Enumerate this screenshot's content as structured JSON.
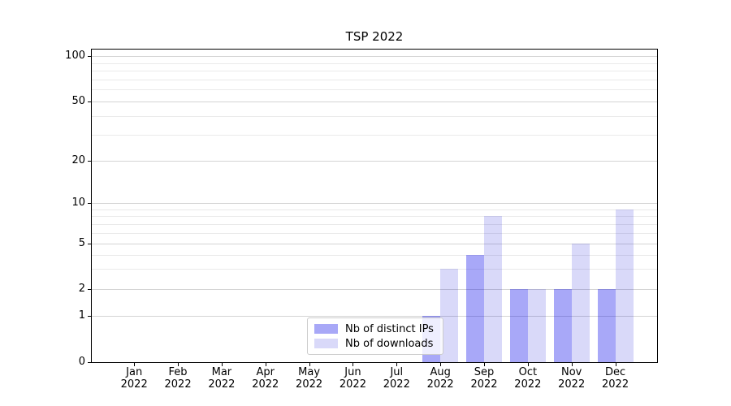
{
  "title": "TSP 2022",
  "chart_data": {
    "type": "bar",
    "title": "TSP 2022",
    "categories": [
      "Jan 2022",
      "Feb 2022",
      "Mar 2022",
      "Apr 2022",
      "May 2022",
      "Jun 2022",
      "Jul 2022",
      "Aug 2022",
      "Sep 2022",
      "Oct 2022",
      "Nov 2022",
      "Dec 2022"
    ],
    "series": [
      {
        "name": "Nb of distinct IPs",
        "color": "rgba(0,0,234,0.34)",
        "solid_color": "#a8a8f7",
        "values": [
          0,
          0,
          0,
          0,
          0,
          0,
          0,
          1,
          4,
          2,
          2,
          2
        ]
      },
      {
        "name": "Nb of downloads",
        "color": "rgba(2,2,215,0.15)",
        "solid_color": "#d9d9f9",
        "values": [
          0,
          0,
          0,
          0,
          0,
          0,
          0,
          3,
          8,
          2,
          5,
          9
        ]
      }
    ],
    "xlabel": "",
    "ylabel": "",
    "y_axis": {
      "scale": "log-like with linear zero region",
      "ticks": [
        0,
        1,
        2,
        5,
        10,
        20,
        50,
        100
      ],
      "tick_labels": [
        "0",
        "1",
        "2",
        "5",
        "10",
        "20",
        "50",
        "100"
      ],
      "minor_gridlines": [
        3,
        4,
        6,
        7,
        8,
        9,
        30,
        40,
        60,
        70,
        80,
        90
      ],
      "ylim": [
        0,
        110
      ]
    },
    "grid": true,
    "legend": {
      "position": "lower center",
      "items": [
        "Nb of distinct IPs",
        "Nb of downloads"
      ]
    }
  },
  "colors": {
    "background": "#ffffff",
    "bar_distinct_ips": "#a8a8f7",
    "bar_downloads": "#d9d9f9",
    "grid_major": "#d4d4d4",
    "grid_minor": "#eaeaea",
    "axis": "#000000",
    "text": "#000000",
    "legend_border": "#cccccc"
  }
}
